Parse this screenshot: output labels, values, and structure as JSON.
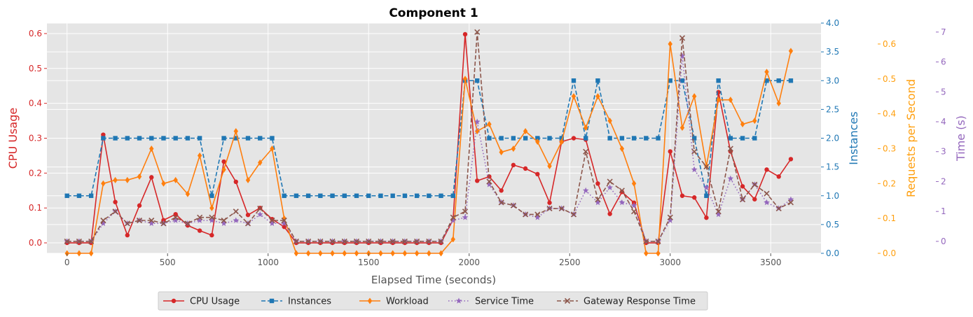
{
  "chart_data": {
    "type": "line",
    "title": "Component 1",
    "xlabel": "Elapsed Time (seconds)",
    "xlim": [
      -100,
      3750
    ],
    "x_ticks": [
      0,
      500,
      1000,
      1500,
      2000,
      2500,
      3000,
      3500
    ],
    "x": [
      0,
      60,
      120,
      180,
      240,
      300,
      360,
      420,
      480,
      540,
      600,
      660,
      720,
      780,
      840,
      900,
      960,
      1020,
      1080,
      1140,
      1200,
      1260,
      1320,
      1380,
      1440,
      1500,
      1560,
      1620,
      1680,
      1740,
      1800,
      1860,
      1920,
      1980,
      2040,
      2100,
      2160,
      2220,
      2280,
      2340,
      2400,
      2460,
      2520,
      2580,
      2640,
      2700,
      2760,
      2820,
      2880,
      2940,
      3000,
      3060,
      3120,
      3180,
      3240,
      3300,
      3360,
      3420,
      3480,
      3540,
      3600
    ],
    "axes": [
      {
        "id": "cpu",
        "label": "CPU Usage",
        "color": "#d62728",
        "ylim": [
          -0.03,
          0.63
        ],
        "ticks": [
          0.0,
          0.1,
          0.2,
          0.3,
          0.4,
          0.5,
          0.6
        ],
        "tick_labels": [
          "0.0",
          "0.1",
          "0.2",
          "0.3",
          "0.4",
          "0.5",
          "0.6"
        ],
        "position": "left"
      },
      {
        "id": "instances",
        "label": "Instances",
        "color": "#1f77b4",
        "ylim": [
          0,
          4.0
        ],
        "ticks": [
          0.0,
          0.5,
          1.0,
          1.5,
          2.0,
          2.5,
          3.0,
          3.5,
          4.0
        ],
        "tick_labels": [
          "0.0",
          "0.5",
          "1.0",
          "1.5",
          "2.0",
          "2.5",
          "3.0",
          "3.5",
          "4.0"
        ],
        "position": "right"
      },
      {
        "id": "rps",
        "label": "Requests per Second",
        "color": "#ff9f0e",
        "ylim": [
          0,
          0.66
        ],
        "ticks": [
          0.0,
          0.1,
          0.2,
          0.3,
          0.4,
          0.5,
          0.6
        ],
        "tick_labels": [
          "0.0",
          "0.1",
          "0.2",
          "0.3",
          "0.4",
          "0.5",
          "0.6"
        ],
        "position": "right-offset-1"
      },
      {
        "id": "time",
        "label": "Time (s)",
        "color": "#9467bd",
        "ylim": [
          -0.4,
          7.3
        ],
        "ticks": [
          0,
          1,
          2,
          3,
          4,
          5,
          6,
          7
        ],
        "tick_labels": [
          "0",
          "1",
          "2",
          "3",
          "4",
          "5",
          "6",
          "7"
        ],
        "position": "right-offset-2"
      }
    ],
    "series": [
      {
        "name": "CPU Usage",
        "axis": "cpu",
        "color": "#d62728",
        "dash": "solid",
        "marker": "circle",
        "values": [
          0.0,
          0.0,
          0.0,
          0.31,
          0.117,
          0.022,
          0.107,
          0.188,
          0.065,
          0.082,
          0.05,
          0.035,
          0.022,
          0.233,
          0.175,
          0.08,
          0.1,
          0.068,
          0.046,
          0.0,
          0.0,
          0.0,
          0.0,
          0.0,
          0.0,
          0.0,
          0.0,
          0.0,
          0.0,
          0.0,
          0.0,
          0.0,
          0.066,
          0.598,
          0.178,
          0.19,
          0.15,
          0.223,
          0.213,
          0.197,
          0.115,
          0.29,
          0.3,
          0.296,
          0.17,
          0.083,
          0.146,
          0.115,
          0.0,
          0.0,
          0.262,
          0.135,
          0.13,
          0.072,
          0.432,
          0.262,
          0.162,
          0.125,
          0.21,
          0.19,
          0.24
        ]
      },
      {
        "name": "Instances",
        "axis": "instances",
        "color": "#1f77b4",
        "dash": "dashed",
        "marker": "square",
        "values": [
          1,
          1,
          1,
          2,
          2,
          2,
          2,
          2,
          2,
          2,
          2,
          2,
          1,
          2,
          2,
          2,
          2,
          2,
          1,
          1,
          1,
          1,
          1,
          1,
          1,
          1,
          1,
          1,
          1,
          1,
          1,
          1,
          1,
          3,
          3,
          2,
          2,
          2,
          2,
          2,
          2,
          2,
          3,
          2,
          3,
          2,
          2,
          2,
          2,
          2,
          3,
          3,
          2,
          1,
          3,
          2,
          2,
          2,
          3,
          3,
          3
        ]
      },
      {
        "name": "Workload",
        "axis": "rps",
        "color": "#ff7f0e",
        "dash": "solid",
        "marker": "diamond",
        "values": [
          0.0,
          0.0,
          0.0,
          0.2,
          0.21,
          0.21,
          0.22,
          0.3,
          0.2,
          0.21,
          0.17,
          0.28,
          0.13,
          0.24,
          0.35,
          0.21,
          0.26,
          0.3,
          0.1,
          0.0,
          0.0,
          0.0,
          0.0,
          0.0,
          0.0,
          0.0,
          0.0,
          0.0,
          0.0,
          0.0,
          0.0,
          0.0,
          0.04,
          0.5,
          0.35,
          0.37,
          0.29,
          0.3,
          0.35,
          0.32,
          0.25,
          0.32,
          0.45,
          0.36,
          0.45,
          0.38,
          0.3,
          0.2,
          0.0,
          0.0,
          0.6,
          0.36,
          0.45,
          0.25,
          0.44,
          0.44,
          0.37,
          0.38,
          0.52,
          0.43,
          0.58
        ]
      },
      {
        "name": "Service Time",
        "axis": "time",
        "color": "#9467bd",
        "dash": "dotted",
        "marker": "star",
        "values": [
          0.0,
          0.0,
          0.0,
          0.6,
          1.0,
          0.6,
          0.7,
          0.6,
          0.6,
          0.7,
          0.6,
          0.7,
          0.7,
          0.6,
          0.7,
          0.6,
          0.9,
          0.6,
          0.6,
          0.0,
          0.0,
          0.0,
          0.0,
          0.0,
          0.0,
          0.0,
          0.0,
          0.0,
          0.0,
          0.0,
          0.0,
          0.0,
          0.7,
          0.8,
          4.0,
          1.9,
          1.3,
          1.2,
          0.9,
          0.8,
          1.1,
          1.1,
          0.9,
          1.7,
          1.3,
          1.8,
          1.3,
          1.2,
          0.0,
          0.0,
          0.7,
          6.2,
          2.4,
          1.8,
          0.9,
          2.1,
          1.4,
          1.9,
          1.3,
          1.1,
          1.4
        ]
      },
      {
        "name": "Gateway Response Time",
        "axis": "time",
        "color": "#8c564b",
        "dash": "dashed",
        "marker": "x",
        "values": [
          0.0,
          0.0,
          0.0,
          0.7,
          1.0,
          0.6,
          0.7,
          0.7,
          0.6,
          0.8,
          0.6,
          0.8,
          0.8,
          0.7,
          1.0,
          0.6,
          1.1,
          0.7,
          0.7,
          0.0,
          0.0,
          0.0,
          0.0,
          0.0,
          0.0,
          0.0,
          0.0,
          0.0,
          0.0,
          0.0,
          0.0,
          0.0,
          0.8,
          1.0,
          7.0,
          2.0,
          1.3,
          1.2,
          0.9,
          0.9,
          1.1,
          1.1,
          0.9,
          3.0,
          1.4,
          2.0,
          1.7,
          1.0,
          0.0,
          0.0,
          0.8,
          6.8,
          3.0,
          2.5,
          1.0,
          3.1,
          1.4,
          1.9,
          1.6,
          1.1,
          1.3
        ]
      }
    ],
    "grid": true,
    "legend": "bottom-center"
  }
}
